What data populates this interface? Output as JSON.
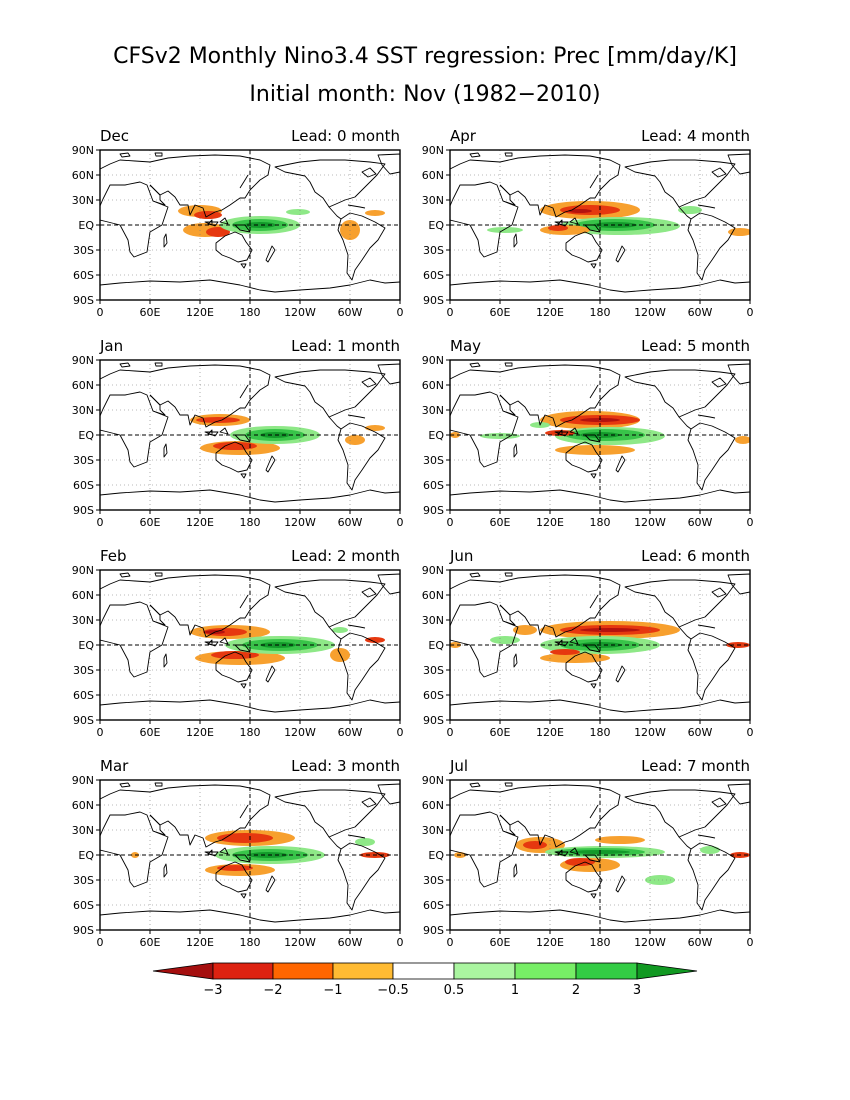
{
  "title": {
    "line1": "CFSv2 Monthly Nino3.4 SST regression: Prec [mm/day/K]",
    "line2": "Initial month: Nov (1982−2010)"
  },
  "panels": [
    {
      "month": "Dec",
      "lead": "Lead: 0 month"
    },
    {
      "month": "Apr",
      "lead": "Lead: 4 month"
    },
    {
      "month": "Jan",
      "lead": "Lead: 1 month"
    },
    {
      "month": "May",
      "lead": "Lead: 5 month"
    },
    {
      "month": "Feb",
      "lead": "Lead: 2 month"
    },
    {
      "month": "Jun",
      "lead": "Lead: 6 month"
    },
    {
      "month": "Mar",
      "lead": "Lead: 3 month"
    },
    {
      "month": "Jul",
      "lead": "Lead: 7 month"
    }
  ],
  "axes": {
    "lat_ticks": [
      "90N",
      "60N",
      "30N",
      "EQ",
      "30S",
      "60S",
      "90S"
    ],
    "lon_ticks": [
      "0",
      "60E",
      "120E",
      "180",
      "120W",
      "60W",
      "0"
    ]
  },
  "colorbar": {
    "labels": [
      "−3",
      "−2",
      "−1",
      "−0.5",
      "0.5",
      "1",
      "2",
      "3"
    ],
    "colors": [
      "#a50f0f",
      "#dd2211",
      "#ff6600",
      "#ffbb33",
      "#ffffff",
      "#aaf5a0",
      "#77ee66",
      "#33cc44",
      "#119922"
    ]
  },
  "anomaly_colors": {
    "neg_strong": "#b4120e",
    "neg_mid": "#e6380f",
    "neg_light": "#f7a02e",
    "pos_light": "#8ee887",
    "pos_mid": "#38c449",
    "pos_strong": "#129a2a"
  }
}
